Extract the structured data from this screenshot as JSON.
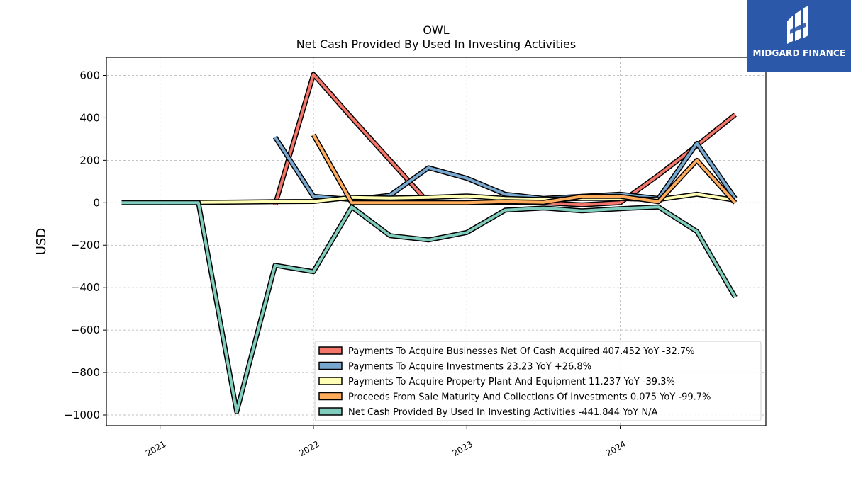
{
  "logo": {
    "text": "MIDGARD FINANCE",
    "color": "#2b58a8"
  },
  "chart_data": {
    "type": "line",
    "title": "OWL",
    "subtitle": "Net Cash Provided By Used In Investing Activities",
    "xlabel": "",
    "ylabel": "USD",
    "xlim": [
      2020.65,
      2024.95
    ],
    "ylim": [
      -1050,
      685
    ],
    "yticks": [
      600,
      400,
      200,
      0,
      -200,
      -400,
      -600,
      -800,
      -1000
    ],
    "ytick_labels": [
      "600",
      "400",
      "200",
      "0",
      "−200",
      "−400",
      "−600",
      "−800",
      "−1000"
    ],
    "xticks": [
      2021,
      2022,
      2023,
      2024
    ],
    "xtick_labels": [
      "2021",
      "2022",
      "2023",
      "2024"
    ],
    "grid": true,
    "legend_position": "lower-right",
    "series": [
      {
        "name": "Payments To Acquire Businesses Net Of Cash Acquired  407.452 YoY -32.7%",
        "color": "#f4756a",
        "x": [
          2021.75,
          2022.0,
          2022.25,
          2022.5,
          2022.75,
          2023.0,
          2023.25,
          2023.5,
          2023.75,
          2024.0,
          2024.25,
          2024.5,
          2024.75
        ],
        "y": [
          -10,
          605,
          400,
          200,
          0,
          0,
          0,
          0,
          -10,
          0,
          130,
          270,
          415
        ]
      },
      {
        "name": "Payments To Acquire Investments  23.23 YoY +26.8%",
        "color": "#78a8cf",
        "x": [
          2021.75,
          2022.0,
          2022.25,
          2022.5,
          2022.75,
          2023.0,
          2023.25,
          2023.5,
          2023.75,
          2024.0,
          2024.25,
          2024.5,
          2024.75
        ],
        "y": [
          310,
          30,
          15,
          35,
          165,
          115,
          40,
          20,
          30,
          40,
          20,
          280,
          20
        ]
      },
      {
        "name": "Payments To Acquire Property Plant And Equipment  11.237 YoY -39.3%",
        "color": "#ffffb6",
        "x": [
          2020.75,
          2021.0,
          2021.25,
          2021.5,
          2021.75,
          2022.0,
          2022.25,
          2022.5,
          2022.75,
          2023.0,
          2023.25,
          2023.5,
          2023.75,
          2024.0,
          2024.25,
          2024.5,
          2024.75
        ],
        "y": [
          2,
          2,
          2,
          3,
          5,
          6,
          25,
          22,
          25,
          32,
          20,
          15,
          20,
          20,
          15,
          40,
          12
        ]
      },
      {
        "name": "Proceeds From Sale Maturity And Collections Of Investments  0.075 YoY -99.7%",
        "color": "#ffab5c",
        "x": [
          2022.0,
          2022.25,
          2022.5,
          2022.75,
          2023.0,
          2023.25,
          2023.5,
          2023.75,
          2024.0,
          2024.25,
          2024.5,
          2024.75
        ],
        "y": [
          320,
          0,
          0,
          0,
          0,
          5,
          2,
          30,
          30,
          5,
          200,
          0
        ]
      },
      {
        "name": "Net Cash Provided By Used In Investing Activities  -441.844 YoY N/A",
        "color": "#80cdbe",
        "x": [
          2020.75,
          2021.0,
          2021.25,
          2021.5,
          2021.75,
          2022.0,
          2022.25,
          2022.5,
          2022.75,
          2023.0,
          2023.25,
          2023.5,
          2023.75,
          2024.0,
          2024.25,
          2024.5,
          2024.75
        ],
        "y": [
          0,
          0,
          0,
          -985,
          -295,
          -325,
          -20,
          -155,
          -175,
          -140,
          -35,
          -25,
          -38,
          -28,
          -20,
          -135,
          -445
        ]
      }
    ]
  }
}
